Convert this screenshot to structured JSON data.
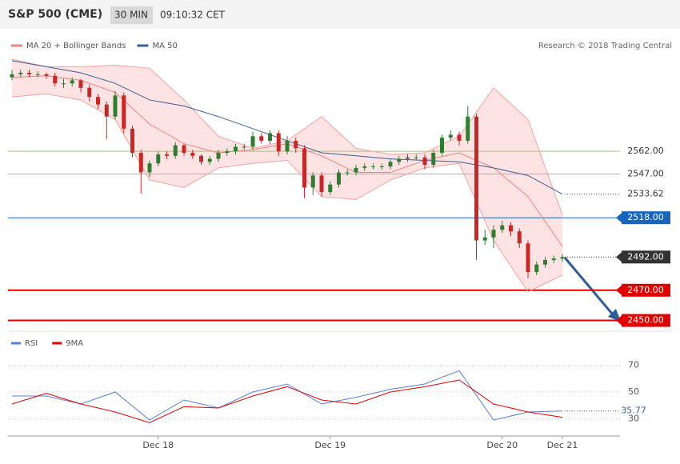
{
  "chart_data": {
    "type": "candlestick",
    "title": "S&P 500 (CME)",
    "interval": "30 MIN",
    "time": "09:10:32 CET",
    "credit": "Research © 2018 Trading Central",
    "legend": [
      {
        "name": "MA 20 + Bollinger Bands",
        "color": "#f08080"
      },
      {
        "name": "MA 50",
        "color": "#3a5f9a"
      }
    ],
    "up_color": "#2e7d32",
    "down_color": "#c62828",
    "ylim": [
      2445,
      2641
    ],
    "categories": [
      null,
      null,
      null,
      null,
      null,
      null,
      null,
      null,
      null,
      null,
      null,
      null,
      null,
      null,
      null,
      null,
      null,
      "Dec 18",
      null,
      null,
      null,
      null,
      null,
      null,
      null,
      null,
      null,
      null,
      null,
      null,
      null,
      null,
      null,
      null,
      null,
      null,
      null,
      "Dec 19",
      null,
      null,
      null,
      null,
      null,
      null,
      null,
      null,
      null,
      null,
      null,
      null,
      null,
      null,
      null,
      null,
      null,
      null,
      null,
      "Dec 20",
      null,
      null,
      null,
      null,
      null,
      null,
      "Dec 21"
    ],
    "candles": [
      [
        2611,
        2616,
        2609,
        2613
      ],
      [
        2613,
        2616,
        2611,
        2614
      ],
      [
        2614,
        2616,
        2611,
        2613
      ],
      [
        2613,
        2615,
        2611,
        2613
      ],
      [
        2613,
        2614,
        2610,
        2612
      ],
      [
        2612,
        2614,
        2605,
        2607
      ],
      [
        2607,
        2610,
        2604,
        2607
      ],
      [
        2607,
        2611,
        2605,
        2609
      ],
      [
        2609,
        2610,
        2601,
        2604
      ],
      [
        2604,
        2606,
        2595,
        2598
      ],
      [
        2598,
        2600,
        2590,
        2593
      ],
      [
        2593,
        2595,
        2570,
        2585
      ],
      [
        2585,
        2602,
        2583,
        2599
      ],
      [
        2599,
        2601,
        2574,
        2577
      ],
      [
        2577,
        2579,
        2558,
        2561
      ],
      [
        2561,
        2563,
        2534,
        2548
      ],
      [
        2548,
        2556,
        2545,
        2554
      ],
      [
        2554,
        2562,
        2552,
        2560
      ],
      [
        2560,
        2562,
        2557,
        2559
      ],
      [
        2559,
        2568,
        2557,
        2566
      ],
      [
        2566,
        2567,
        2559,
        2561
      ],
      [
        2561,
        2563,
        2557,
        2559
      ],
      [
        2559,
        2560,
        2553,
        2555
      ],
      [
        2555,
        2559,
        2553,
        2557
      ],
      [
        2557,
        2563,
        2555,
        2561
      ],
      [
        2561,
        2564,
        2559,
        2562
      ],
      [
        2562,
        2567,
        2560,
        2565
      ],
      [
        2565,
        2567,
        2563,
        2565
      ],
      [
        2565,
        2575,
        2563,
        2572
      ],
      [
        2572,
        2574,
        2567,
        2569
      ],
      [
        2569,
        2576,
        2567,
        2574
      ],
      [
        2574,
        2576,
        2559,
        2562
      ],
      [
        2562,
        2572,
        2560,
        2569
      ],
      [
        2569,
        2571,
        2561,
        2564
      ],
      [
        2564,
        2566,
        2531,
        2538
      ],
      [
        2538,
        2548,
        2533,
        2546
      ],
      [
        2546,
        2548,
        2532,
        2535
      ],
      [
        2535,
        2542,
        2533,
        2540
      ],
      [
        2540,
        2550,
        2538,
        2548
      ],
      [
        2548,
        2550,
        2546,
        2548
      ],
      [
        2548,
        2553,
        2546,
        2551
      ],
      [
        2551,
        2554,
        2549,
        2552
      ],
      [
        2552,
        2554,
        2550,
        2552
      ],
      [
        2552,
        2554,
        2550,
        2552
      ],
      [
        2552,
        2557,
        2550,
        2555
      ],
      [
        2555,
        2559,
        2553,
        2557
      ],
      [
        2557,
        2560,
        2555,
        2558
      ],
      [
        2558,
        2560,
        2556,
        2558
      ],
      [
        2558,
        2560,
        2550,
        2553
      ],
      [
        2553,
        2563,
        2551,
        2561
      ],
      [
        2561,
        2573,
        2559,
        2571
      ],
      [
        2571,
        2576,
        2569,
        2573
      ],
      [
        2573,
        2575,
        2566,
        2569
      ],
      [
        2569,
        2592,
        2567,
        2585
      ],
      [
        2585,
        2587,
        2490,
        2503
      ],
      [
        2503,
        2510,
        2500,
        2505
      ],
      [
        2505,
        2513,
        2498,
        2510
      ],
      [
        2510,
        2516,
        2508,
        2513
      ],
      [
        2513,
        2515,
        2506,
        2509
      ],
      [
        2509,
        2511,
        2498,
        2501
      ],
      [
        2501,
        2503,
        2478,
        2482
      ],
      [
        2482,
        2489,
        2480,
        2487
      ],
      [
        2487,
        2492,
        2485,
        2490
      ],
      [
        2490,
        2493,
        2488,
        2491
      ],
      [
        2491,
        2494,
        2489,
        2492
      ]
    ],
    "indicator_x": [
      0,
      4,
      8,
      12,
      16,
      20,
      24,
      28,
      32,
      36,
      40,
      44,
      48,
      52,
      56,
      60,
      64
    ],
    "indicators": [
      {
        "color": "#f4a0a0",
        "values": [
          2623,
          2618,
          2618,
          2619,
          2617,
          2596,
          2572,
          2564,
          2569,
          2585,
          2564,
          2560,
          2561,
          2572,
          2604,
          2583,
          2520
        ]
      },
      {
        "color": "#f4a0a0",
        "values": [
          2598,
          2600,
          2596,
          2583,
          2543,
          2538,
          2551,
          2554,
          2556,
          2532,
          2530,
          2543,
          2551,
          2554,
          2503,
          2469,
          2480
        ]
      },
      {
        "color": "#f08080",
        "values": [
          2611,
          2612,
          2609,
          2601,
          2580,
          2567,
          2561,
          2563,
          2567,
          2559,
          2548,
          2548,
          2556,
          2561,
          2551,
          2532,
          2499
        ]
      },
      {
        "color": "#3a5f9a",
        "values": [
          2622,
          2618,
          2614,
          2607,
          2596,
          2592,
          2585,
          2577,
          2569,
          2561,
          2559,
          2557,
          2556,
          2555,
          2551,
          2546,
          2533.62
        ]
      }
    ],
    "band_fill": "#fde3e3",
    "levels": [
      {
        "value": 2562,
        "label": "2562.00",
        "color": "#9ccc65",
        "kind": "line",
        "box": false
      },
      {
        "value": 2547,
        "label": "2547.00",
        "color": "#9ccc65",
        "kind": "line",
        "box": false
      },
      {
        "value": 2533.62,
        "label": "2533.62",
        "color": "#555555",
        "kind": "dotted",
        "box": false
      },
      {
        "value": 2518,
        "label": "2518.00",
        "color": "#1565c0",
        "kind": "line",
        "box": true
      },
      {
        "value": 2492,
        "label": "2492.00",
        "color": "#333333",
        "kind": "dotted",
        "box": true
      },
      {
        "value": 2470,
        "label": "2470.00",
        "color": "#e00000",
        "kind": "line",
        "box": true
      },
      {
        "value": 2450,
        "label": "2450.00",
        "color": "#e00000",
        "kind": "line",
        "box": true
      }
    ],
    "rsi": {
      "ylim": [
        20,
        80
      ],
      "yticks": [
        30,
        50,
        70
      ],
      "current": 35.77,
      "series": [
        {
          "name": "RSI",
          "color": "#5b7fd6",
          "values": [
            47,
            47,
            41,
            50,
            29,
            44,
            38,
            50,
            56,
            41,
            46,
            52,
            56,
            66,
            29,
            35,
            35.77
          ]
        },
        {
          "name": "9MA",
          "color": "#e00000",
          "values": [
            41,
            49,
            41,
            35,
            27,
            39,
            38,
            47,
            54,
            44,
            41,
            50,
            54,
            59,
            41,
            35,
            31
          ]
        }
      ]
    }
  }
}
